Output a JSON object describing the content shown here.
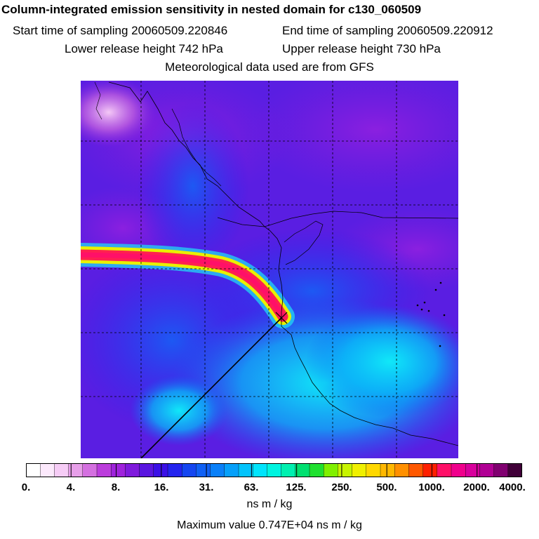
{
  "header": {
    "title": "Column-integrated emission sensitivity in nested domain for c130_060509",
    "start_label": "Start time of sampling 20060509.220846",
    "end_label": "End time of sampling 20060509.220912",
    "lower_label": "Lower release height  742 hPa",
    "upper_label": "Upper release height  730 hPa",
    "met_label": "Meteorological data used are from GFS"
  },
  "colorbar": {
    "ticks": [
      "0.",
      "4.",
      "8.",
      "16.",
      "31.",
      "63.",
      "125.",
      "250.",
      "500.",
      "1000.",
      "2000.",
      "4000."
    ],
    "colors": [
      "#ffffff",
      "#fce9fc",
      "#f6ccf6",
      "#e79fe9",
      "#d470e0",
      "#bb3ddc",
      "#9f22dc",
      "#7f1adc",
      "#5a16e0",
      "#3b10e6",
      "#2424ee",
      "#1546f0",
      "#1060f4",
      "#0a80f8",
      "#06a0fa",
      "#03c4fc",
      "#00e4fc",
      "#00f4e0",
      "#00f0b0",
      "#00e070",
      "#20e030",
      "#80f000",
      "#c8f400",
      "#f0f000",
      "#ffd800",
      "#ffb800",
      "#ff9000",
      "#ff5800",
      "#ff2000",
      "#ff1068",
      "#f0008c",
      "#d8009c",
      "#b00094",
      "#800070",
      "#400038"
    ],
    "unit_label": "ns m / kg",
    "max_label": "Maximum value  0.747E+04 ns m / kg"
  },
  "map": {
    "background": "#5a20f0",
    "plume_colors": [
      "#20e0f0",
      "#f0f000",
      "#ff2050",
      "#ff1068"
    ]
  }
}
